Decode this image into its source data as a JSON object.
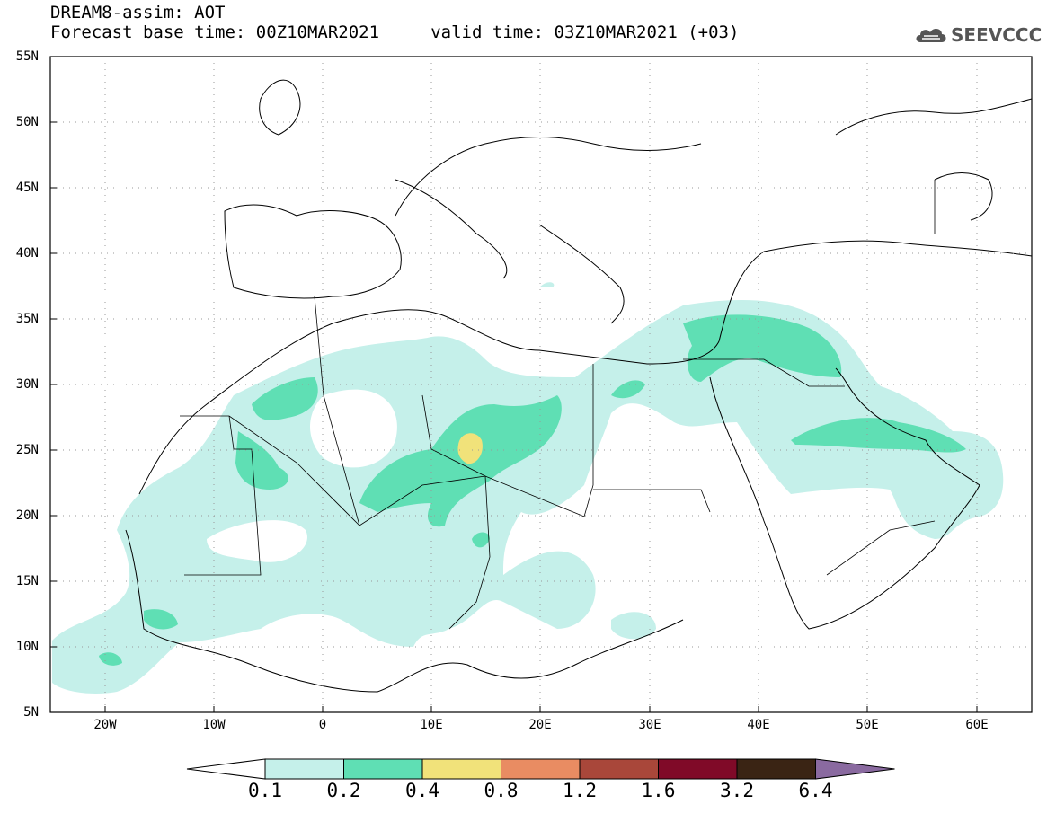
{
  "title": {
    "line1": "DREAM8-assim: AOT",
    "line2": "Forecast base time: 00Z10MAR2021     valid time: 03Z10MAR2021 (+03)"
  },
  "logo": {
    "text": "SEEVCCC",
    "icon": "cloud-logo-icon"
  },
  "map": {
    "lat_labels": [
      "55N",
      "50N",
      "45N",
      "40N",
      "35N",
      "30N",
      "25N",
      "20N",
      "15N",
      "10N",
      "5N"
    ],
    "lon_labels": [
      "20W",
      "10W",
      "0",
      "10E",
      "20E",
      "30E",
      "40E",
      "50E",
      "60E"
    ],
    "extent": {
      "lon": [
        -25,
        65
      ],
      "lat": [
        5,
        55
      ]
    }
  },
  "colorbar": {
    "labels": [
      "0.1",
      "0.2",
      "0.4",
      "0.8",
      "1.2",
      "1.6",
      "3.2",
      "6.4"
    ],
    "colors": [
      "#ffffff",
      "#c5f0ea",
      "#5fdfb4",
      "#f1e27a",
      "#e98c62",
      "#a9473a",
      "#800a28",
      "#3a2414",
      "#8a6aa0"
    ]
  }
}
